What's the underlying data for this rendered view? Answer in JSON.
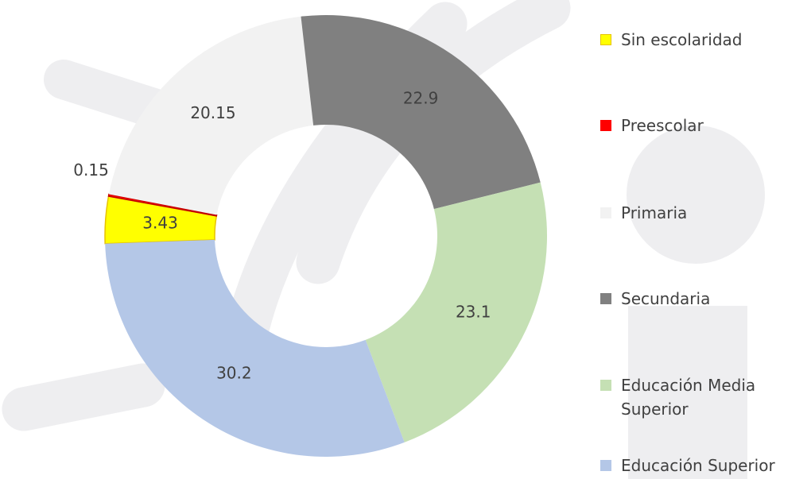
{
  "chart_data": {
    "type": "doughnut",
    "categories": [
      "Sin escolaridad",
      "Preescolar",
      "Primaria",
      "Secundaria",
      "Educación Media Superior",
      "Educación Superior"
    ],
    "values": [
      3.43,
      0.15,
      20.15,
      22.9,
      23.1,
      30.2
    ],
    "colors": [
      "#ffff00",
      "#ff0000",
      "#f2f2f2",
      "#808080",
      "#c5e0b4",
      "#b4c7e7"
    ],
    "legend": "right"
  }
}
